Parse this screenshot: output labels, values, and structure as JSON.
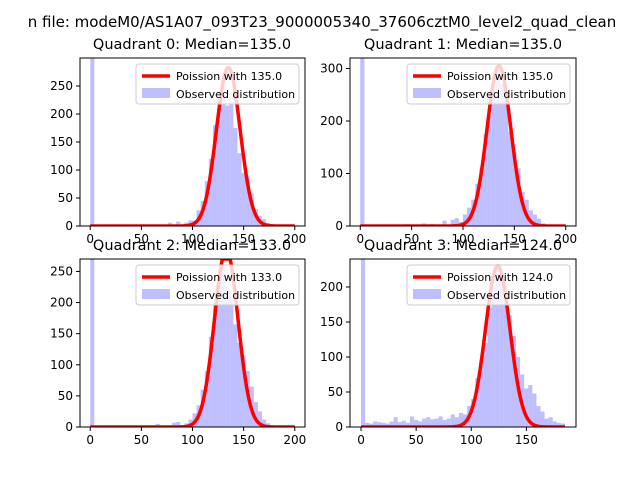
{
  "figure": {
    "suptitle": "n file: modeM0/AS1A07_093T23_9000005340_37606cztM0_level2_quad_clean"
  },
  "chart_data": [
    {
      "type": "bar",
      "title": "Quadrant 0: Median=135.0",
      "xlim": [
        -10,
        210
      ],
      "ylim": [
        0,
        300
      ],
      "xticks": [
        0,
        50,
        100,
        150,
        200
      ],
      "yticks": [
        0,
        50,
        100,
        150,
        200,
        250
      ],
      "legend": {
        "placement": "top-right",
        "entries": [
          "Poission with 135.0",
          "Observed distribution"
        ]
      },
      "poisson": {
        "name": "Poission with 135.0",
        "lambda": 135.0,
        "peak": 283,
        "x_range": [
          0,
          200
        ],
        "color": "#ff0000"
      },
      "hist": {
        "name": "Observed distribution",
        "color": "#8080ff",
        "bin_width": 4.0,
        "bins": [
          [
            0,
            320
          ],
          [
            76,
            6
          ],
          [
            84,
            8
          ],
          [
            92,
            6
          ],
          [
            96,
            10
          ],
          [
            100,
            10
          ],
          [
            104,
            28
          ],
          [
            108,
            45
          ],
          [
            112,
            80
          ],
          [
            116,
            120
          ],
          [
            120,
            180
          ],
          [
            124,
            210
          ],
          [
            128,
            240
          ],
          [
            132,
            215
          ],
          [
            136,
            220
          ],
          [
            140,
            175
          ],
          [
            144,
            130
          ],
          [
            148,
            95
          ],
          [
            152,
            90
          ],
          [
            156,
            58
          ],
          [
            160,
            30
          ],
          [
            164,
            18
          ],
          [
            168,
            12
          ],
          [
            172,
            5
          ]
        ]
      }
    },
    {
      "type": "bar",
      "title": "Quadrant 1: Median=135.0",
      "xlim": [
        -10,
        210
      ],
      "ylim": [
        0,
        320
      ],
      "xticks": [
        0,
        50,
        100,
        150,
        200
      ],
      "yticks": [
        0,
        100,
        200,
        300
      ],
      "legend": {
        "placement": "top-right",
        "entries": [
          "Poission with 135.0",
          "Observed distribution"
        ]
      },
      "poisson": {
        "name": "Poission with 135.0",
        "lambda": 135.0,
        "peak": 305,
        "x_range": [
          0,
          200
        ],
        "color": "#ff0000"
      },
      "hist": {
        "name": "Observed distribution",
        "color": "#8080ff",
        "bin_width": 4.0,
        "bins": [
          [
            0,
            340
          ],
          [
            44,
            4
          ],
          [
            60,
            5
          ],
          [
            68,
            4
          ],
          [
            80,
            10
          ],
          [
            88,
            12
          ],
          [
            92,
            15
          ],
          [
            96,
            8
          ],
          [
            100,
            22
          ],
          [
            104,
            35
          ],
          [
            108,
            50
          ],
          [
            112,
            80
          ],
          [
            116,
            110
          ],
          [
            120,
            175
          ],
          [
            124,
            210
          ],
          [
            128,
            260
          ],
          [
            132,
            300
          ],
          [
            136,
            270
          ],
          [
            140,
            250
          ],
          [
            144,
            180
          ],
          [
            148,
            140
          ],
          [
            152,
            110
          ],
          [
            156,
            65
          ],
          [
            160,
            50
          ],
          [
            164,
            30
          ],
          [
            168,
            22
          ],
          [
            172,
            14
          ],
          [
            176,
            5
          ]
        ]
      }
    },
    {
      "type": "bar",
      "title": "Quadrant 2: Median=133.0",
      "xlim": [
        -10,
        210
      ],
      "ylim": [
        0,
        270
      ],
      "xticks": [
        0,
        50,
        100,
        150,
        200
      ],
      "yticks": [
        0,
        50,
        100,
        150,
        200,
        250
      ],
      "legend": {
        "placement": "top-right",
        "entries": [
          "Poission with 133.0",
          "Observed distribution"
        ]
      },
      "poisson": {
        "name": "Poission with 133.0",
        "lambda": 133.0,
        "peak": 285,
        "x_range": [
          0,
          200
        ],
        "color": "#ff0000"
      },
      "hist": {
        "name": "Observed distribution",
        "color": "#8080ff",
        "bin_width": 4.0,
        "bins": [
          [
            0,
            300
          ],
          [
            64,
            5
          ],
          [
            80,
            7
          ],
          [
            84,
            8
          ],
          [
            92,
            6
          ],
          [
            96,
            12
          ],
          [
            100,
            22
          ],
          [
            104,
            35
          ],
          [
            108,
            60
          ],
          [
            112,
            90
          ],
          [
            116,
            145
          ],
          [
            120,
            200
          ],
          [
            124,
            230
          ],
          [
            128,
            255
          ],
          [
            132,
            225
          ],
          [
            136,
            210
          ],
          [
            140,
            165
          ],
          [
            144,
            135
          ],
          [
            148,
            115
          ],
          [
            152,
            90
          ],
          [
            156,
            65
          ],
          [
            160,
            40
          ],
          [
            164,
            25
          ],
          [
            168,
            12
          ],
          [
            172,
            6
          ]
        ]
      }
    },
    {
      "type": "bar",
      "title": "Quadrant 3: Median=124.0",
      "xlim": [
        -10,
        195
      ],
      "ylim": [
        0,
        240
      ],
      "xticks": [
        0,
        50,
        100,
        150
      ],
      "yticks": [
        0,
        50,
        100,
        150,
        200
      ],
      "legend": {
        "placement": "top-right",
        "entries": [
          "Poission with 124.0",
          "Observed distribution"
        ]
      },
      "poisson": {
        "name": "Poission with 124.0",
        "lambda": 124.0,
        "peak": 230,
        "x_range": [
          0,
          185
        ],
        "color": "#ff0000"
      },
      "hist": {
        "name": "Observed distribution",
        "color": "#8080ff",
        "bin_width": 3.7,
        "bins": [
          [
            0,
            260
          ],
          [
            3.7,
            6
          ],
          [
            7.4,
            5
          ],
          [
            11.1,
            8
          ],
          [
            14.8,
            7
          ],
          [
            18.5,
            6
          ],
          [
            22.2,
            5
          ],
          [
            25.9,
            8
          ],
          [
            29.6,
            14
          ],
          [
            33.3,
            7
          ],
          [
            37,
            9
          ],
          [
            40.7,
            6
          ],
          [
            44.4,
            15
          ],
          [
            48.1,
            10
          ],
          [
            51.8,
            8
          ],
          [
            55.5,
            12
          ],
          [
            59.2,
            14
          ],
          [
            62.9,
            11
          ],
          [
            66.6,
            12
          ],
          [
            70.3,
            15
          ],
          [
            74,
            10
          ],
          [
            77.7,
            12
          ],
          [
            81.4,
            18
          ],
          [
            85.1,
            14
          ],
          [
            88.8,
            20
          ],
          [
            92.5,
            18
          ],
          [
            96.2,
            30
          ],
          [
            99.9,
            40
          ],
          [
            103.6,
            70
          ],
          [
            107.3,
            95
          ],
          [
            111,
            120
          ],
          [
            114.7,
            170
          ],
          [
            118.4,
            200
          ],
          [
            122.1,
            230
          ],
          [
            125.8,
            215
          ],
          [
            129.5,
            195
          ],
          [
            133.2,
            160
          ],
          [
            136.9,
            130
          ],
          [
            140.6,
            100
          ],
          [
            144.3,
            75
          ],
          [
            148,
            55
          ],
          [
            151.7,
            60
          ],
          [
            155.4,
            48
          ],
          [
            159.1,
            30
          ],
          [
            162.8,
            22
          ],
          [
            166.5,
            12
          ],
          [
            170.2,
            14
          ],
          [
            173.9,
            8
          ],
          [
            177.6,
            6
          ],
          [
            181.3,
            5
          ]
        ]
      }
    }
  ]
}
